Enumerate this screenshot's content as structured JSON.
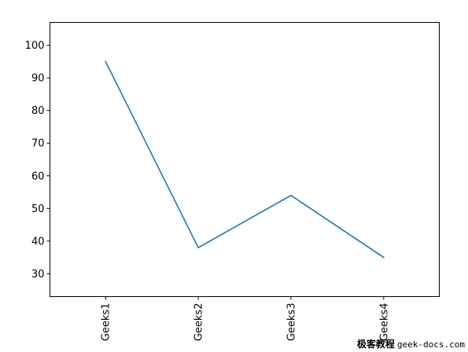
{
  "chart_data": {
    "type": "line",
    "categories": [
      "Geeks1",
      "Geeks2",
      "Geeks3",
      "Geeks4"
    ],
    "series": [
      {
        "values": [
          95,
          38,
          54,
          35
        ],
        "color": "#1f77b4"
      }
    ],
    "ylim": [
      23,
      107
    ],
    "yticks": [
      30,
      40,
      50,
      60,
      70,
      80,
      90,
      100
    ],
    "xtick_rotation": 90,
    "grid": false,
    "legend": false
  },
  "watermark": {
    "chinese": "极客教程",
    "domain": "geek-docs.com"
  }
}
